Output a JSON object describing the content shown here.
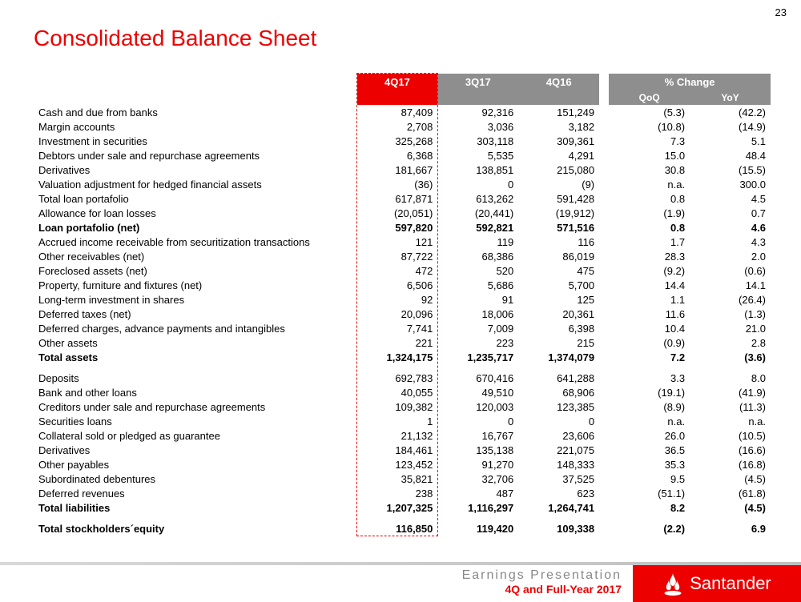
{
  "page_number": "23",
  "title": "Consolidated Balance Sheet",
  "table": {
    "header_blank": "",
    "col_4q17": "4Q17",
    "col_3q17": "3Q17",
    "col_4q16": "4Q16",
    "col_change": "% Change",
    "col_qoq": "QoQ",
    "col_yoy": "YoY",
    "header_colors": {
      "red": "#ec0000",
      "gray": "#8e8e8e"
    },
    "highlight_border_color": "#ec0000",
    "rows": [
      {
        "label": "Cash and due from banks",
        "q4_17": "87,409",
        "q3_17": "92,316",
        "q4_16": "151,249",
        "qoq": "(5.3)",
        "yoy": "(42.2)"
      },
      {
        "label": "Margin accounts",
        "q4_17": "2,708",
        "q3_17": "3,036",
        "q4_16": "3,182",
        "qoq": "(10.8)",
        "yoy": "(14.9)"
      },
      {
        "label": "Investment in securities",
        "q4_17": "325,268",
        "q3_17": "303,118",
        "q4_16": "309,361",
        "qoq": "7.3",
        "yoy": "5.1"
      },
      {
        "label": "Debtors under sale and repurchase agreements",
        "q4_17": "6,368",
        "q3_17": "5,535",
        "q4_16": "4,291",
        "qoq": "15.0",
        "yoy": "48.4"
      },
      {
        "label": "Derivatives",
        "q4_17": "181,667",
        "q3_17": "138,851",
        "q4_16": "215,080",
        "qoq": "30.8",
        "yoy": "(15.5)"
      },
      {
        "label": "Valuation adjustment for hedged financial assets",
        "q4_17": "(36)",
        "q3_17": "0",
        "q4_16": "(9)",
        "qoq": "n.a.",
        "yoy": "300.0"
      },
      {
        "label": "Total loan portafolio",
        "q4_17": "617,871",
        "q3_17": "613,262",
        "q4_16": "591,428",
        "qoq": "0.8",
        "yoy": "4.5"
      },
      {
        "label": "Allowance for loan losses",
        "q4_17": "(20,051)",
        "q3_17": "(20,441)",
        "q4_16": "(19,912)",
        "qoq": "(1.9)",
        "yoy": "0.7"
      },
      {
        "label": "Loan portafolio (net)",
        "q4_17": "597,820",
        "q3_17": "592,821",
        "q4_16": "571,516",
        "qoq": "0.8",
        "yoy": "4.6",
        "bold": true
      },
      {
        "label": "Accrued income receivable from securitization transactions",
        "q4_17": "121",
        "q3_17": "119",
        "q4_16": "116",
        "qoq": "1.7",
        "yoy": "4.3"
      },
      {
        "label": "Other receivables (net)",
        "q4_17": "87,722",
        "q3_17": "68,386",
        "q4_16": "86,019",
        "qoq": "28.3",
        "yoy": "2.0"
      },
      {
        "label": "Foreclosed assets (net)",
        "q4_17": "472",
        "q3_17": "520",
        "q4_16": "475",
        "qoq": "(9.2)",
        "yoy": "(0.6)"
      },
      {
        "label": "Property, furniture and fixtures (net)",
        "q4_17": "6,506",
        "q3_17": "5,686",
        "q4_16": "5,700",
        "qoq": "14.4",
        "yoy": "14.1"
      },
      {
        "label": "Long-term investment in shares",
        "q4_17": "92",
        "q3_17": "91",
        "q4_16": "125",
        "qoq": "1.1",
        "yoy": "(26.4)"
      },
      {
        "label": "Deferred taxes (net)",
        "q4_17": "20,096",
        "q3_17": "18,006",
        "q4_16": "20,361",
        "qoq": "11.6",
        "yoy": "(1.3)"
      },
      {
        "label": "Deferred charges, advance payments and intangibles",
        "q4_17": "7,741",
        "q3_17": "7,009",
        "q4_16": "6,398",
        "qoq": "10.4",
        "yoy": "21.0"
      },
      {
        "label": "Other assets",
        "q4_17": "221",
        "q3_17": "223",
        "q4_16": "215",
        "qoq": "(0.9)",
        "yoy": "2.8"
      },
      {
        "label": "Total assets",
        "q4_17": "1,324,175",
        "q3_17": "1,235,717",
        "q4_16": "1,374,079",
        "qoq": "7.2",
        "yoy": "(3.6)",
        "bold": true
      },
      {
        "spacer": true
      },
      {
        "label": "Deposits",
        "q4_17": "692,783",
        "q3_17": "670,416",
        "q4_16": "641,288",
        "qoq": "3.3",
        "yoy": "8.0"
      },
      {
        "label": "Bank and other loans",
        "q4_17": "40,055",
        "q3_17": "49,510",
        "q4_16": "68,906",
        "qoq": "(19.1)",
        "yoy": "(41.9)"
      },
      {
        "label": "Creditors under sale and repurchase agreements",
        "q4_17": "109,382",
        "q3_17": "120,003",
        "q4_16": "123,385",
        "qoq": "(8.9)",
        "yoy": "(11.3)"
      },
      {
        "label": "Securities loans",
        "q4_17": "1",
        "q3_17": "0",
        "q4_16": "0",
        "qoq": "n.a.",
        "yoy": "n.a."
      },
      {
        "label": "Collateral sold or pledged as guarantee",
        "q4_17": "21,132",
        "q3_17": "16,767",
        "q4_16": "23,606",
        "qoq": "26.0",
        "yoy": "(10.5)"
      },
      {
        "label": "Derivatives",
        "q4_17": "184,461",
        "q3_17": "135,138",
        "q4_16": "221,075",
        "qoq": "36.5",
        "yoy": "(16.6)"
      },
      {
        "label": "Other payables",
        "q4_17": "123,452",
        "q3_17": "91,270",
        "q4_16": "148,333",
        "qoq": "35.3",
        "yoy": "(16.8)"
      },
      {
        "label": "Subordinated debentures",
        "q4_17": "35,821",
        "q3_17": "32,706",
        "q4_16": "37,525",
        "qoq": "9.5",
        "yoy": "(4.5)"
      },
      {
        "label": "Deferred revenues",
        "q4_17": "238",
        "q3_17": "487",
        "q4_16": "623",
        "qoq": "(51.1)",
        "yoy": "(61.8)"
      },
      {
        "label": "Total liabilities",
        "q4_17": "1,207,325",
        "q3_17": "1,116,297",
        "q4_16": "1,264,741",
        "qoq": "8.2",
        "yoy": "(4.5)",
        "bold": true
      },
      {
        "spacer": true
      },
      {
        "label": "Total stockholders´equity",
        "q4_17": "116,850",
        "q3_17": "119,420",
        "q4_16": "109,338",
        "qoq": "(2.2)",
        "yoy": "6.9",
        "bold": true
      }
    ]
  },
  "footer": {
    "line1": "Earnings Presentation",
    "line2": "4Q and Full-Year 2017",
    "logo_text": "Santander",
    "bar_gradient": [
      "#d8d8d8",
      "#bfbfbf"
    ],
    "logo_bg": "#ec0000"
  }
}
